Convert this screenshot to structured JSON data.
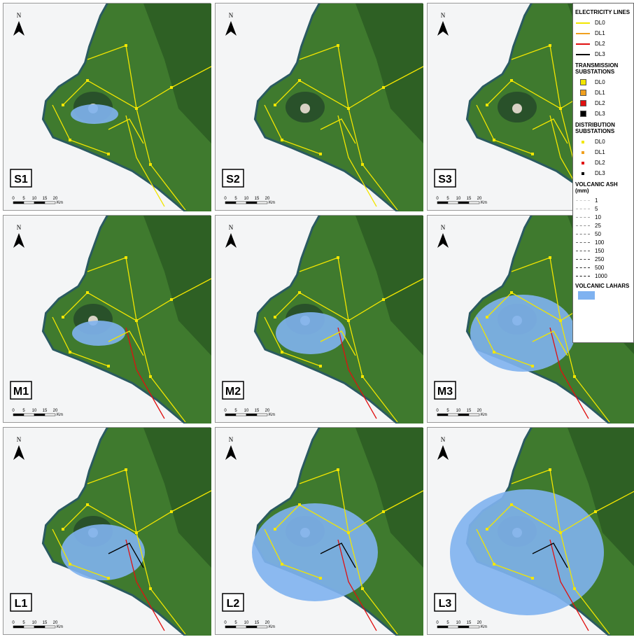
{
  "panels": [
    {
      "label": "S1"
    },
    {
      "label": "S2"
    },
    {
      "label": "S3"
    },
    {
      "label": "M1"
    },
    {
      "label": "M2"
    },
    {
      "label": "M3"
    },
    {
      "label": "L1"
    },
    {
      "label": "L2"
    },
    {
      "label": "L3"
    }
  ],
  "north_label": "N",
  "scale_bar": {
    "ticks": [
      "0",
      "5",
      "10",
      "15",
      "20"
    ],
    "unit": "Km"
  },
  "legend": {
    "electricity_lines": {
      "title": "ELECTRICITY LINES",
      "items": [
        {
          "label": "DL0",
          "color": "#f2e600"
        },
        {
          "label": "DL1",
          "color": "#f0a020"
        },
        {
          "label": "DL2",
          "color": "#e01010"
        },
        {
          "label": "DL3",
          "color": "#000000"
        }
      ]
    },
    "transmission_substations": {
      "title": "TRANSMISSION SUBSTATIONS",
      "items": [
        {
          "label": "DL0",
          "color": "#f2e600"
        },
        {
          "label": "DL1",
          "color": "#f0a020"
        },
        {
          "label": "DL2",
          "color": "#e01010"
        },
        {
          "label": "DL3",
          "color": "#000000"
        }
      ]
    },
    "distribution_substations": {
      "title": "DISTRIBUTION SUBSTATIONS",
      "items": [
        {
          "label": "DL0",
          "color": "#f2e600"
        },
        {
          "label": "DL1",
          "color": "#f0a020"
        },
        {
          "label": "DL2",
          "color": "#e01010"
        },
        {
          "label": "DL3",
          "color": "#000000"
        }
      ]
    },
    "volcanic_ash": {
      "title": "VOLCANIC ASH (mm)",
      "items": [
        "1",
        "5",
        "10",
        "25",
        "50",
        "100",
        "150",
        "250",
        "500",
        "1000"
      ]
    },
    "volcanic_lahars": {
      "title": "VOLCANIC LAHARS",
      "color": "#7fb2f0"
    }
  }
}
